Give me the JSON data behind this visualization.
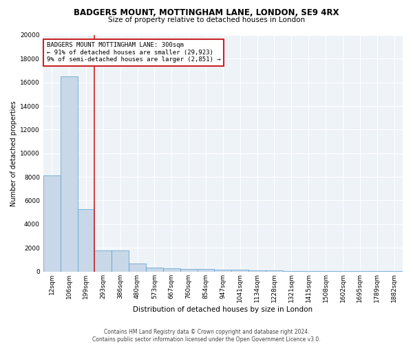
{
  "title": "BADGERS MOUNT, MOTTINGHAM LANE, LONDON, SE9 4RX",
  "subtitle": "Size of property relative to detached houses in London",
  "xlabel": "Distribution of detached houses by size in London",
  "ylabel": "Number of detached properties",
  "categories": [
    "12sqm",
    "106sqm",
    "199sqm",
    "293sqm",
    "386sqm",
    "480sqm",
    "573sqm",
    "667sqm",
    "760sqm",
    "854sqm",
    "947sqm",
    "1041sqm",
    "1134sqm",
    "1228sqm",
    "1321sqm",
    "1415sqm",
    "1508sqm",
    "1602sqm",
    "1695sqm",
    "1789sqm",
    "1882sqm"
  ],
  "values": [
    8100,
    16500,
    5300,
    1800,
    1800,
    700,
    350,
    250,
    200,
    180,
    150,
    130,
    100,
    80,
    60,
    50,
    40,
    30,
    20,
    15,
    10
  ],
  "bar_color": "#c8d8e8",
  "bar_edge_color": "#5599cc",
  "red_line_x": 2.5,
  "red_line_color": "#cc2222",
  "annotation_text": "BADGERS MOUNT MOTTINGHAM LANE: 300sqm\n← 91% of detached houses are smaller (29,923)\n9% of semi-detached houses are larger (2,851) →",
  "annotation_box_color": "white",
  "annotation_box_edge_color": "#cc2222",
  "ylim": [
    0,
    20000
  ],
  "yticks": [
    0,
    2000,
    4000,
    6000,
    8000,
    10000,
    12000,
    14000,
    16000,
    18000,
    20000
  ],
  "footer": "Contains HM Land Registry data © Crown copyright and database right 2024.\nContains public sector information licensed under the Open Government Licence v3.0.",
  "bg_color": "#eef3f8",
  "grid_color": "white",
  "title_fontsize": 8.5,
  "subtitle_fontsize": 7.5,
  "ylabel_fontsize": 7,
  "xlabel_fontsize": 7.5,
  "tick_fontsize": 6.5,
  "annotation_fontsize": 6.5,
  "footer_fontsize": 5.5
}
